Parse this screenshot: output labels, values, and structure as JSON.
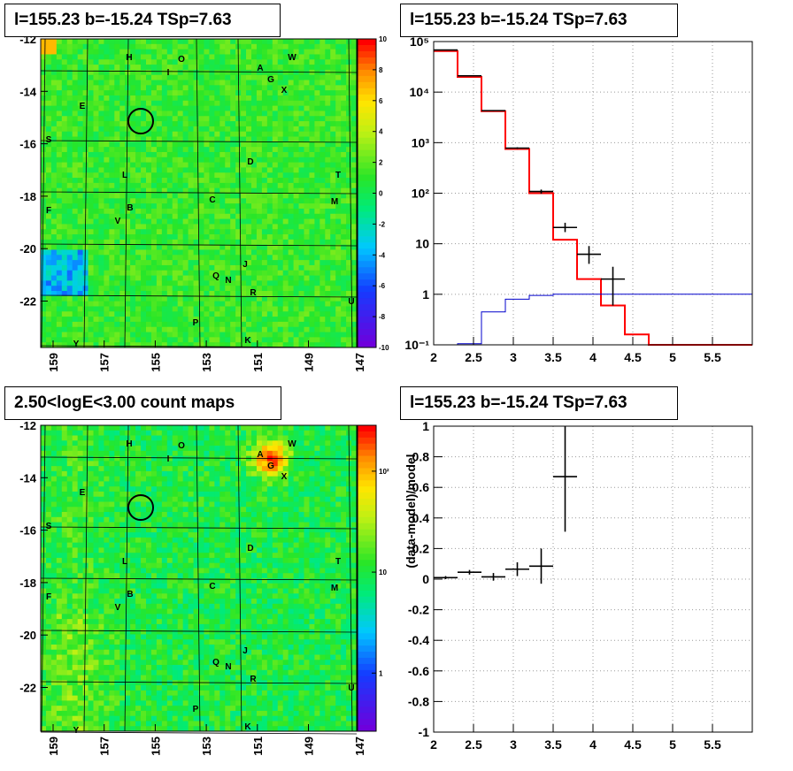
{
  "colors": {
    "hist_red": "#ff0000",
    "hist_blue": "#0000cc",
    "data": "#000000",
    "grid": "#999999"
  },
  "panels": {
    "tl": {
      "title": "l=155.23 b=-15.24 TSp=7.63"
    },
    "tr": {
      "title": "l=155.23 b=-15.24 TSp=7.63"
    },
    "bl": {
      "title": "2.50<logE<3.00 count maps"
    },
    "br": {
      "title": "l=155.23 b=-15.24 TSp=7.63"
    }
  },
  "sky_map": {
    "y_ticks": [
      "-12",
      "-14",
      "-16",
      "-18",
      "-20",
      "-22"
    ],
    "x_ticks": [
      "159",
      "157",
      "155",
      "153",
      "151",
      "149",
      "147"
    ],
    "residual_colorbar": [
      "10",
      "8",
      "6",
      "4",
      "2",
      "0",
      "-2",
      "-4",
      "-6",
      "-8",
      "-10"
    ],
    "count_colorbar": [
      "10²",
      "10",
      "1"
    ],
    "source_labels": [
      {
        "t": "H",
        "x": 146,
        "y": 68
      },
      {
        "t": "O",
        "x": 205,
        "y": 70
      },
      {
        "t": "I",
        "x": 190,
        "y": 85
      },
      {
        "t": "A",
        "x": 294,
        "y": 80
      },
      {
        "t": "W",
        "x": 330,
        "y": 68
      },
      {
        "t": "G",
        "x": 306,
        "y": 93
      },
      {
        "t": "X",
        "x": 321,
        "y": 105
      },
      {
        "t": "E",
        "x": 93,
        "y": 123
      },
      {
        "t": "S",
        "x": 55,
        "y": 161
      },
      {
        "t": "D",
        "x": 283,
        "y": 186
      },
      {
        "t": "L",
        "x": 141,
        "y": 201
      },
      {
        "t": "T",
        "x": 382,
        "y": 201
      },
      {
        "t": "C",
        "x": 240,
        "y": 229
      },
      {
        "t": "M",
        "x": 378,
        "y": 231
      },
      {
        "t": "B",
        "x": 147,
        "y": 238
      },
      {
        "t": "F",
        "x": 55,
        "y": 241
      },
      {
        "t": "V",
        "x": 133,
        "y": 253
      },
      {
        "t": "J",
        "x": 277,
        "y": 302
      },
      {
        "t": "Q",
        "x": 244,
        "y": 315
      },
      {
        "t": "N",
        "x": 258,
        "y": 320
      },
      {
        "t": "R",
        "x": 286,
        "y": 334
      },
      {
        "t": "U",
        "x": 397,
        "y": 344
      },
      {
        "t": "P",
        "x": 221,
        "y": 368
      },
      {
        "t": "K",
        "x": 280,
        "y": 388
      },
      {
        "t": "Y",
        "x": 86,
        "y": 392
      }
    ]
  },
  "chart_data": [
    {
      "panel": "tr",
      "type": "line",
      "title": "l=155.23 b=-15.24 TSp=7.63",
      "xlabel": "",
      "ylabel": "",
      "xlim": [
        2.0,
        6.0
      ],
      "ylim": [
        0.1,
        100000
      ],
      "log_y": true,
      "grid": true,
      "x_ticks": [
        "2",
        "2.5",
        "3",
        "3.5",
        "4",
        "4.5",
        "5",
        "5.5"
      ],
      "y_ticks": [
        "10⁻¹",
        "1",
        "10",
        "10²",
        "10³",
        "10⁴",
        "10⁵"
      ],
      "series": [
        {
          "style": "step",
          "color": "#ff0000",
          "edges": [
            2.0,
            2.3,
            2.6,
            2.9,
            3.2,
            3.5,
            3.8,
            4.1,
            4.4,
            4.7,
            6.0
          ],
          "values": [
            65000,
            20000,
            4200,
            750,
            100,
            12,
            2,
            0.6,
            0.16,
            0.1
          ]
        },
        {
          "style": "step",
          "color": "#0000cc",
          "edges": [
            2.0,
            2.3,
            2.6,
            2.9,
            3.2,
            3.5,
            6.0
          ],
          "values": [
            0.1,
            0.105,
            0.45,
            0.8,
            0.95,
            1.0
          ]
        },
        {
          "style": "errorbar",
          "color": "#000000",
          "points": [
            {
              "x": 2.15,
              "y": 68000,
              "xerr": 0.15,
              "ylo": 67000,
              "yhi": 69000
            },
            {
              "x": 2.45,
              "y": 21000,
              "xerr": 0.15,
              "ylo": 20500,
              "yhi": 21500
            },
            {
              "x": 2.75,
              "y": 4300,
              "xerr": 0.15,
              "ylo": 4200,
              "yhi": 4400
            },
            {
              "x": 3.05,
              "y": 780,
              "xerr": 0.15,
              "ylo": 750,
              "yhi": 810
            },
            {
              "x": 3.35,
              "y": 108,
              "xerr": 0.15,
              "ylo": 98,
              "yhi": 118
            },
            {
              "x": 3.65,
              "y": 21,
              "xerr": 0.15,
              "ylo": 17,
              "yhi": 26
            },
            {
              "x": 3.95,
              "y": 6.2,
              "xerr": 0.15,
              "ylo": 4,
              "yhi": 9
            },
            {
              "x": 4.25,
              "y": 2.0,
              "xerr": 0.15,
              "ylo": 0.6,
              "yhi": 3.5
            }
          ]
        }
      ]
    },
    {
      "panel": "br",
      "type": "scatter",
      "title": "l=155.23 b=-15.24 TSp=7.63",
      "xlabel": "",
      "ylabel": "(data-model)/model",
      "xlim": [
        2.0,
        6.0
      ],
      "ylim": [
        -1,
        1
      ],
      "grid": true,
      "x_ticks": [
        "2",
        "2.5",
        "3",
        "3.5",
        "4",
        "4.5",
        "5",
        "5.5"
      ],
      "y_ticks": [
        "-1",
        "-0.8",
        "-0.6",
        "-0.4",
        "-0.2",
        "0",
        "0.2",
        "0.4",
        "0.6",
        "0.8",
        "1"
      ],
      "series": [
        {
          "style": "errorbar",
          "color": "#000000",
          "points": [
            {
              "x": 2.15,
              "y": 0.01,
              "xerr": 0.15,
              "ylo": 0.0,
              "yhi": 0.02
            },
            {
              "x": 2.45,
              "y": 0.045,
              "xerr": 0.15,
              "ylo": 0.03,
              "yhi": 0.06
            },
            {
              "x": 2.75,
              "y": 0.015,
              "xerr": 0.15,
              "ylo": -0.01,
              "yhi": 0.04
            },
            {
              "x": 3.05,
              "y": 0.065,
              "xerr": 0.15,
              "ylo": 0.02,
              "yhi": 0.11
            },
            {
              "x": 3.35,
              "y": 0.085,
              "xerr": 0.15,
              "ylo": -0.03,
              "yhi": 0.2
            },
            {
              "x": 3.65,
              "y": 0.67,
              "xerr": 0.15,
              "ylo": 0.31,
              "yhi": 1.0
            }
          ]
        }
      ]
    }
  ]
}
